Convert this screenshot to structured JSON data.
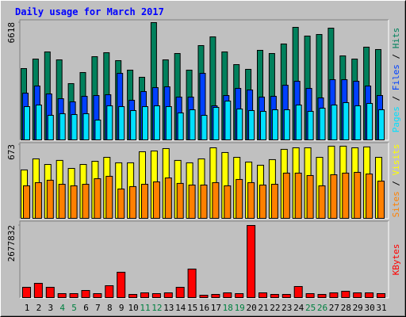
{
  "chart_data": {
    "type": "bar",
    "title": "Daily usage for March 2017",
    "categories": [
      "1",
      "2",
      "3",
      "4",
      "5",
      "6",
      "7",
      "8",
      "9",
      "10",
      "11",
      "12",
      "13",
      "14",
      "15",
      "16",
      "17",
      "18",
      "19",
      "20",
      "21",
      "22",
      "23",
      "24",
      "25",
      "26",
      "27",
      "28",
      "29",
      "30",
      "31"
    ],
    "category_colors": [
      "#000000",
      "#000000",
      "#000000",
      "#008040",
      "#008040",
      "#000000",
      "#000000",
      "#000000",
      "#000000",
      "#000000",
      "#008040",
      "#008040",
      "#000000",
      "#000000",
      "#000000",
      "#000000",
      "#000000",
      "#008040",
      "#008040",
      "#000000",
      "#000000",
      "#000000",
      "#000000",
      "#000000",
      "#008040",
      "#008040",
      "#000000",
      "#000000",
      "#000000",
      "#000000",
      "#000000"
    ],
    "legend_separator": " / ",
    "panels": [
      {
        "ylim": [
          0,
          6618
        ],
        "yticks": [
          6618
        ],
        "series": [
          {
            "name": "Hits",
            "color": "#00805c",
            "values": [
              4024,
              4560,
              4963,
              4516,
              3175,
              3801,
              4695,
              4919,
              4472,
              3935,
              3533,
              6618,
              4516,
              4874,
              3935,
              5321,
              5813,
              4963,
              4248,
              3980,
              5053,
              4874,
              5411,
              6350,
              5858,
              5947,
              6305,
              4740,
              4560,
              5232,
              5098
            ]
          },
          {
            "name": "Files",
            "color": "#0040ff",
            "values": [
              2637,
              3040,
              2593,
              2324,
              2146,
              2459,
              2503,
              2548,
              3755,
              2235,
              2727,
              2950,
              2995,
              2414,
              2414,
              3755,
              1922,
              2503,
              2906,
              2816,
              2414,
              2459,
              3084,
              3308,
              2906,
              2369,
              3397,
              3397,
              3308,
              3040,
              2503
            ]
          },
          {
            "name": "Pages",
            "color": "#00e0ff",
            "values": [
              1877,
              1967,
              1386,
              1475,
              1430,
              1475,
              1118,
              1922,
              1877,
              1654,
              1877,
              1922,
              1877,
              1520,
              1699,
              1386,
              1833,
              2190,
              1743,
              1654,
              1609,
              1699,
              1699,
              1967,
              1609,
              1788,
              1967,
              2101,
              1922,
              2056,
              1699
            ]
          }
        ]
      },
      {
        "ylim": [
          0,
          673
        ],
        "yticks": [
          673
        ],
        "series": [
          {
            "name": "Visits",
            "color": "#ffff00",
            "values": [
              442,
              543,
              492,
              529,
              456,
              492,
              521,
              557,
              507,
              507,
              608,
              615,
              637,
              529,
              507,
              543,
              644,
              601,
              557,
              514,
              485,
              536,
              630,
              644,
              644,
              557,
              659,
              659,
              644,
              652,
              557
            ]
          },
          {
            "name": "Sites",
            "color": "#ff8000",
            "values": [
              297,
              326,
              348,
              311,
              297,
              311,
              362,
              384,
              268,
              290,
              311,
              333,
              369,
              319,
              304,
              304,
              326,
              297,
              355,
              326,
              304,
              311,
              413,
              413,
              391,
              297,
              398,
              413,
              420,
              405,
              340
            ]
          }
        ]
      },
      {
        "ylim": [
          0,
          2677832
        ],
        "yticks": [
          2677832
        ],
        "series": [
          {
            "name": "KBytes",
            "color": "#ff0000",
            "values": [
              382551,
              529686,
              382551,
              147135,
              147135,
              264843,
              147135,
              441405,
              941664,
              117708,
              176562,
              147135,
              176562,
              382551,
              1059372,
              88281,
              117708,
              176562,
              147135,
              2677832,
              176562,
              117708,
              117708,
              411978,
              147135,
              117708,
              176562,
              235416,
              176562,
              176562,
              147135
            ]
          }
        ]
      }
    ]
  }
}
